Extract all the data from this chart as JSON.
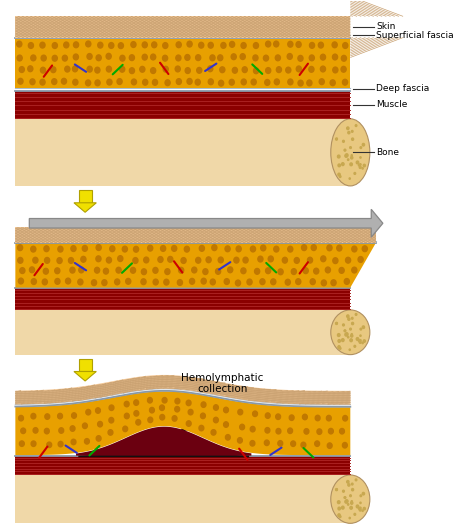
{
  "bg_color": "#ffffff",
  "skin_color": "#f2c898",
  "skin_texture_color": "#c8a070",
  "fat_color": "#e8a000",
  "fat_dot_color": "#c07800",
  "fascia1_color": "#8899aa",
  "fascia2_color": "#aabbcc",
  "muscle_color": "#8b0000",
  "muscle_light_color": "#aa2222",
  "bone_body_color": "#f0d8a8",
  "bone_end_color": "#e8c880",
  "bone_dot_color": "#c8a850",
  "vessel_colors": [
    "#cc0000",
    "#3333cc",
    "#00aa00",
    "#cc0000",
    "#3333cc",
    "#00aa00",
    "#cc0000"
  ],
  "vessel_angles": [
    50,
    -30,
    40,
    -50,
    30,
    -40,
    50
  ],
  "arrow_yellow": "#f0e000",
  "arrow_yellow_edge": "#b0a000",
  "arrow_gray": "#b0b0b0",
  "arrow_gray_edge": "#888888",
  "collection_dark": "#6b0010",
  "necrosis_color": "#111111",
  "label_color": "#000000",
  "line_color": "#222222",
  "labels": [
    "Skin",
    "Superficial fascia",
    "Deep fascia",
    "Muscle",
    "Bone"
  ],
  "title3": "Hemolymphatic\ncollection"
}
